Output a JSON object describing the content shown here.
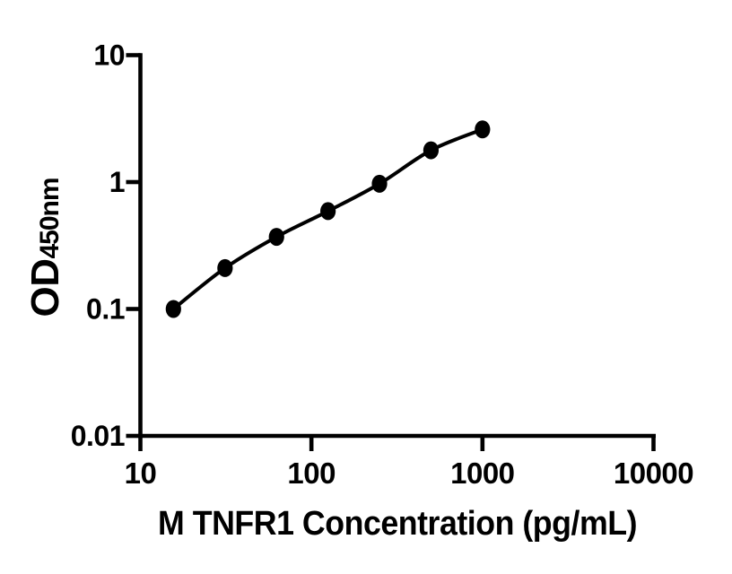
{
  "chart_data": {
    "type": "scatter",
    "curve_style": "smooth-fit-line",
    "title": "",
    "xlabel": "M TNFR1 Concentration (pg/mL)",
    "ylabel_main": "OD",
    "ylabel_sub": "450nm",
    "x_scale": "log",
    "y_scale": "log",
    "xlim": [
      10,
      10000
    ],
    "ylim": [
      0.01,
      10
    ],
    "x_ticks": [
      10,
      100,
      1000,
      10000
    ],
    "x_tick_labels": [
      "10",
      "100",
      "1000",
      "10000"
    ],
    "y_ticks": [
      0.01,
      0.1,
      1,
      10
    ],
    "y_tick_labels": [
      "0.01",
      "0.1",
      "1",
      "10"
    ],
    "grid": false,
    "legend": false,
    "background": "#ffffff",
    "axis_color": "#000000",
    "line_color": "#000000",
    "marker_color": "#000000",
    "series": [
      {
        "x": [
          15.6,
          31.25,
          62.5,
          125,
          250,
          500,
          1000
        ],
        "y": [
          0.1,
          0.21,
          0.37,
          0.59,
          0.97,
          1.78,
          2.6
        ]
      }
    ]
  }
}
